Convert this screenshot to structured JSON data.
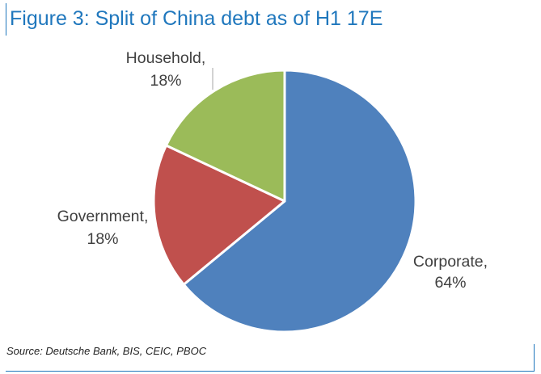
{
  "title": "Figure 3: Split of China debt as of H1 17E",
  "source": "Source: Deutsche Bank, BIS, CEIC, PBOC",
  "chart_data": {
    "type": "pie",
    "title": "Figure 3: Split of China debt as of H1 17E",
    "slices": [
      {
        "label": "Corporate",
        "value": 64,
        "value_label": "64%",
        "color": "#4f81bd"
      },
      {
        "label": "Government",
        "value": 18,
        "value_label": "18%",
        "color": "#c0504d"
      },
      {
        "label": "Household",
        "value": 18,
        "value_label": "18%",
        "color": "#9bbb59"
      }
    ],
    "start_angle": "12 o'clock",
    "direction": "clockwise",
    "legend": "none (data labels outside slices)"
  }
}
